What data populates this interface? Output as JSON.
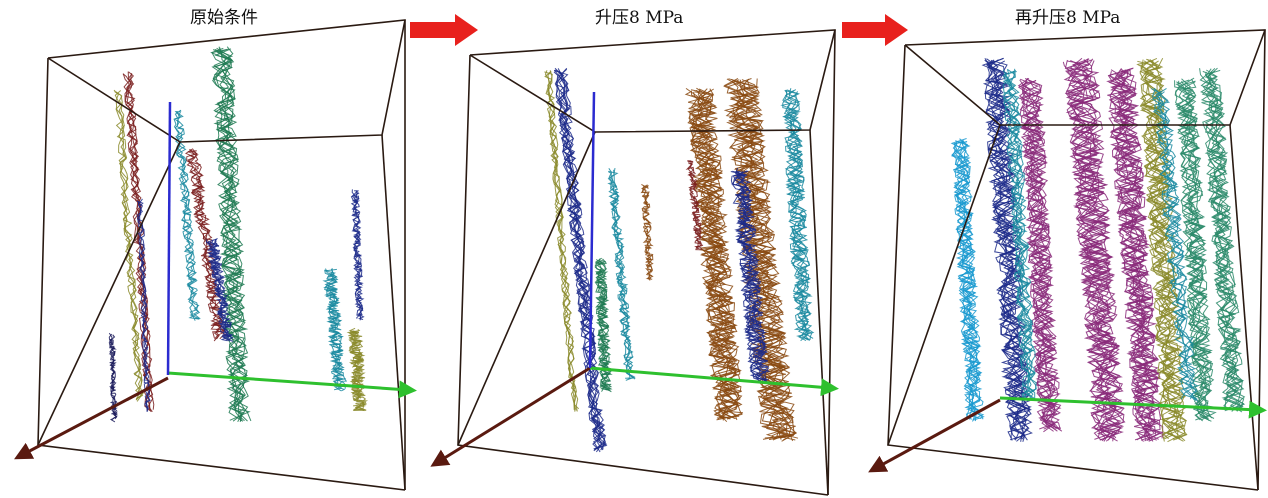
{
  "panels": [
    {
      "title": "原始条件"
    },
    {
      "title": "升压8 MPa"
    },
    {
      "title": "再升压8 MPa"
    }
  ],
  "colors": {
    "arrow": "#e8211d",
    "x_axis": "#5a1a10",
    "y_axis": "#2ec02e",
    "z_axis": "#2b2bd0",
    "box_edge": "#2a1a12",
    "box_top_edge": "#d8a890",
    "fracture_palette": [
      "#1f7a52",
      "#7a1f1f",
      "#1c2a8a",
      "#1a8aa0",
      "#8a8a2a",
      "#8a2a7a",
      "#8a4a12",
      "#2a8a6a",
      "#1a9ad0",
      "#1a1a5a"
    ]
  }
}
